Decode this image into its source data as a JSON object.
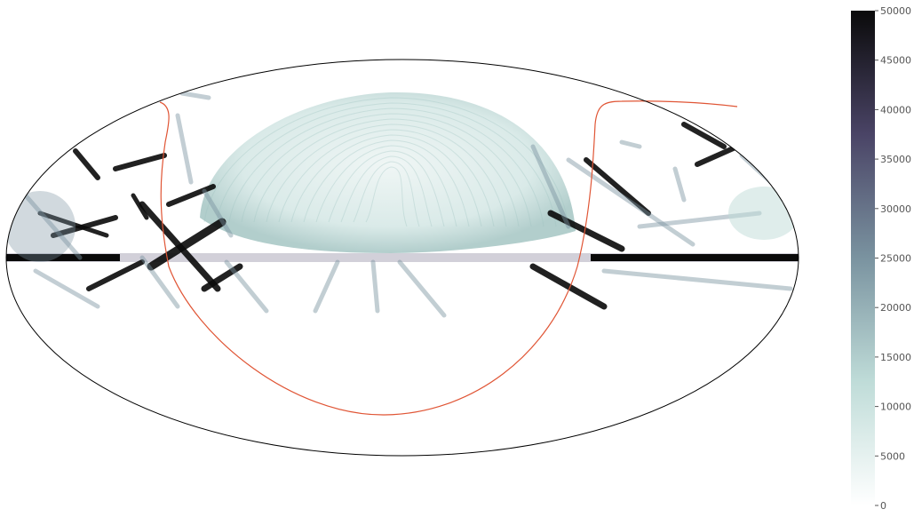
{
  "chart_data": {
    "type": "heatmap",
    "projection": "mollweide",
    "title": "",
    "xlabel": "",
    "ylabel": "",
    "grid": false,
    "colormap": [
      "#ffffff",
      "#bfdcd8",
      "#7a93a0",
      "#4a4466",
      "#0a0a0a"
    ],
    "boundary_line_color": "#e05535",
    "colorbar": {
      "range": [
        0,
        50000
      ],
      "ticks": [
        0,
        5000,
        10000,
        15000,
        20000,
        25000,
        30000,
        35000,
        40000,
        45000,
        50000
      ],
      "tick_labels": [
        "0",
        "5000",
        "10000",
        "15000",
        "20000",
        "25000",
        "30000",
        "35000",
        "40000",
        "45000",
        "50000"
      ]
    }
  }
}
